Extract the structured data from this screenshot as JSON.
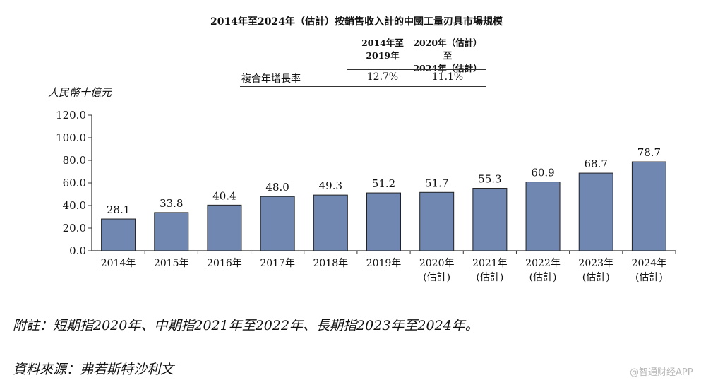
{
  "chart_data": {
    "type": "bar",
    "title": "2014年至2024年（估計）按銷售收入計的中國工量刃具市場規模",
    "ylabel": "人民幣十億元",
    "xlabel": "",
    "ylim": [
      0,
      120
    ],
    "yticks": [
      "0.0",
      "20.0",
      "40.0",
      "60.0",
      "80.0",
      "100.0",
      "120.0"
    ],
    "categories": [
      [
        "2014年"
      ],
      [
        "2015年"
      ],
      [
        "2016年"
      ],
      [
        "2017年"
      ],
      [
        "2018年"
      ],
      [
        "2019年"
      ],
      [
        "2020年",
        "(估計)"
      ],
      [
        "2021年",
        "(估計)"
      ],
      [
        "2022年",
        "(估計)"
      ],
      [
        "2023年",
        "(估計)"
      ],
      [
        "2024年",
        "(估計)"
      ]
    ],
    "values": [
      28.1,
      33.8,
      40.4,
      48.0,
      49.3,
      51.2,
      51.7,
      55.3,
      60.9,
      68.7,
      78.7
    ],
    "value_labels": [
      "28.1",
      "33.8",
      "40.4",
      "48.0",
      "49.3",
      "51.2",
      "51.7",
      "55.3",
      "60.9",
      "68.7",
      "78.7"
    ],
    "bar_color": "#6f87b1",
    "grid": false
  },
  "cagr": {
    "headers": [
      [
        "2014年至",
        "2019年"
      ],
      [
        "2020年（估計）至",
        "2024年（估計）"
      ]
    ],
    "row_label": "複合年增長率",
    "values": [
      "12.7%",
      "11.1%"
    ]
  },
  "note": "附註：短期指2020年、中期指2021年至2022年、長期指2023年至2024年。",
  "source": "資料來源：弗若斯特沙利文",
  "watermark": "@智通财经APP"
}
